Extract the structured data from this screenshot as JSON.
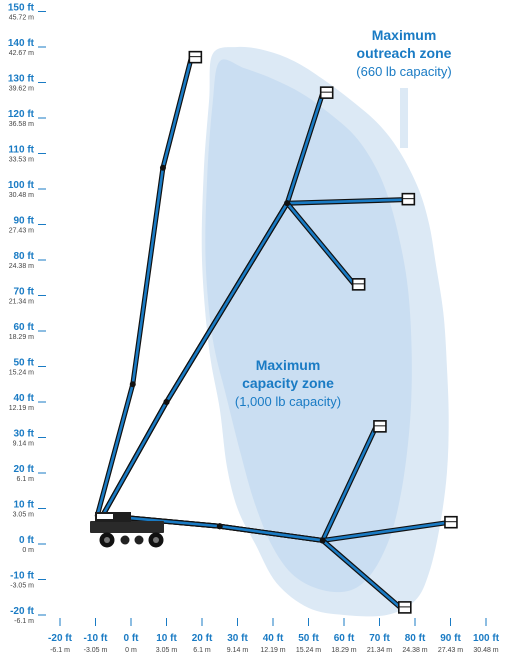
{
  "zones": {
    "outreach": {
      "title_line1": "Maximum",
      "title_line2": "outreach zone",
      "capacity": "(660 lb capacity)"
    },
    "capacity": {
      "title_line1": "Maximum",
      "title_line2": "capacity zone",
      "capacity": "(1,000 lb capacity)"
    }
  },
  "colors": {
    "outreach_zone": "#dce9f5",
    "capacity_zone": "#bcd6ee",
    "label_box": "#ffffff",
    "tick_ft": "#1a7bc4",
    "tick_m": "#444444",
    "boom": "#1a7bc4",
    "boom_outline": "#111111"
  },
  "chart_data": {
    "type": "diagram",
    "description_units": "ft",
    "x_axis": {
      "ticks": [
        {
          "ft": -20,
          "ft_label": "-20 ft",
          "m_label": "-6.1 m"
        },
        {
          "ft": -10,
          "ft_label": "-10 ft",
          "m_label": "-3.05 m"
        },
        {
          "ft": 0,
          "ft_label": "0 ft",
          "m_label": "0 m"
        },
        {
          "ft": 10,
          "ft_label": "10 ft",
          "m_label": "3.05 m"
        },
        {
          "ft": 20,
          "ft_label": "20 ft",
          "m_label": "6.1 m"
        },
        {
          "ft": 30,
          "ft_label": "30 ft",
          "m_label": "9.14 m"
        },
        {
          "ft": 40,
          "ft_label": "40 ft",
          "m_label": "12.19 m"
        },
        {
          "ft": 50,
          "ft_label": "50 ft",
          "m_label": "15.24 m"
        },
        {
          "ft": 60,
          "ft_label": "60 ft",
          "m_label": "18.29 m"
        },
        {
          "ft": 70,
          "ft_label": "70 ft",
          "m_label": "21.34 m"
        },
        {
          "ft": 80,
          "ft_label": "80 ft",
          "m_label": "24.38 m"
        },
        {
          "ft": 90,
          "ft_label": "90 ft",
          "m_label": "27.43 m"
        },
        {
          "ft": 100,
          "ft_label": "100 ft",
          "m_label": "30.48 m"
        }
      ]
    },
    "y_axis": {
      "ticks": [
        {
          "ft": 150,
          "ft_label": "150 ft",
          "m_label": "45.72 m"
        },
        {
          "ft": 140,
          "ft_label": "140 ft",
          "m_label": "42.67 m"
        },
        {
          "ft": 130,
          "ft_label": "130 ft",
          "m_label": "39.62 m"
        },
        {
          "ft": 120,
          "ft_label": "120 ft",
          "m_label": "36.58 m"
        },
        {
          "ft": 110,
          "ft_label": "110 ft",
          "m_label": "33.53 m"
        },
        {
          "ft": 100,
          "ft_label": "100 ft",
          "m_label": "30.48 m"
        },
        {
          "ft": 90,
          "ft_label": "90 ft",
          "m_label": "27.43 m"
        },
        {
          "ft": 80,
          "ft_label": "80 ft",
          "m_label": "24.38 m"
        },
        {
          "ft": 70,
          "ft_label": "70 ft",
          "m_label": "21.34 m"
        },
        {
          "ft": 60,
          "ft_label": "60 ft",
          "m_label": "18.29 m"
        },
        {
          "ft": 50,
          "ft_label": "50 ft",
          "m_label": "15.24 m"
        },
        {
          "ft": 40,
          "ft_label": "40 ft",
          "m_label": "12.19 m"
        },
        {
          "ft": 30,
          "ft_label": "30 ft",
          "m_label": "9.14 m"
        },
        {
          "ft": 20,
          "ft_label": "20 ft",
          "m_label": "6.1 m"
        },
        {
          "ft": 10,
          "ft_label": "10 ft",
          "m_label": "3.05 m"
        },
        {
          "ft": 0,
          "ft_label": "0 ft",
          "m_label": "0 m"
        },
        {
          "ft": -10,
          "ft_label": "-10 ft",
          "m_label": "-3.05 m"
        },
        {
          "ft": -20,
          "ft_label": "-20 ft",
          "m_label": "-6.1 m"
        }
      ]
    },
    "outreach_zone_outline": [
      [
        23,
        138
      ],
      [
        30,
        140
      ],
      [
        38,
        139
      ],
      [
        46,
        136
      ],
      [
        54,
        131
      ],
      [
        62,
        125
      ],
      [
        70,
        118
      ],
      [
        76,
        110
      ],
      [
        81,
        100
      ],
      [
        84,
        90
      ],
      [
        86,
        78
      ],
      [
        88,
        65
      ],
      [
        89,
        50
      ],
      [
        89.5,
        35
      ],
      [
        89,
        20
      ],
      [
        87,
        5
      ],
      [
        84,
        -8
      ],
      [
        80,
        -16
      ],
      [
        72,
        -20
      ],
      [
        60,
        -20
      ],
      [
        50,
        -18
      ],
      [
        41,
        -11
      ],
      [
        35,
        0
      ],
      [
        30,
        10
      ],
      [
        27,
        22
      ],
      [
        25,
        38
      ],
      [
        22,
        55
      ],
      [
        20,
        80
      ],
      [
        20.5,
        105
      ],
      [
        22,
        125
      ]
    ],
    "capacity_zone_outline": [
      [
        25,
        136
      ],
      [
        32,
        134
      ],
      [
        40,
        131
      ],
      [
        48,
        127
      ],
      [
        55,
        122
      ],
      [
        63,
        115
      ],
      [
        69,
        106
      ],
      [
        73,
        96
      ],
      [
        76,
        84
      ],
      [
        78,
        72
      ],
      [
        79,
        57
      ],
      [
        79,
        42
      ],
      [
        78,
        28
      ],
      [
        76,
        14
      ],
      [
        73,
        2
      ],
      [
        68,
        -8
      ],
      [
        62,
        -13
      ],
      [
        54,
        -13
      ],
      [
        46,
        -9
      ],
      [
        40,
        -1
      ],
      [
        35,
        11
      ],
      [
        31,
        25
      ],
      [
        27,
        41
      ],
      [
        23,
        58
      ],
      [
        21,
        80
      ],
      [
        21.5,
        104
      ],
      [
        23,
        124
      ]
    ],
    "boom_positions": [
      {
        "name": "vertical",
        "points": [
          [
            -9.5,
            8
          ],
          [
            0.5,
            45
          ],
          [
            9,
            106
          ],
          [
            17,
            137
          ]
        ]
      },
      {
        "name": "upper-articulated-up",
        "points": [
          [
            -8,
            8
          ],
          [
            10,
            40
          ],
          [
            44,
            96
          ],
          [
            54,
            127
          ]
        ]
      },
      {
        "name": "upper-articulated-level",
        "points": [
          [
            -8,
            8
          ],
          [
            10,
            40
          ],
          [
            44,
            96
          ],
          [
            77,
            97
          ]
        ]
      },
      {
        "name": "upper-articulated-down",
        "points": [
          [
            -8,
            8
          ],
          [
            10,
            40
          ],
          [
            44,
            96
          ],
          [
            63,
            73
          ]
        ]
      },
      {
        "name": "lower-articulated-up",
        "points": [
          [
            -8,
            8
          ],
          [
            25,
            5
          ],
          [
            54,
            1
          ],
          [
            69,
            33
          ]
        ]
      },
      {
        "name": "lower-articulated-level",
        "points": [
          [
            -8,
            8
          ],
          [
            25,
            5
          ],
          [
            54,
            1
          ],
          [
            89,
            6
          ]
        ]
      },
      {
        "name": "lower-articulated-down",
        "points": [
          [
            -8,
            8
          ],
          [
            25,
            5
          ],
          [
            54,
            1
          ],
          [
            76,
            -18
          ]
        ]
      }
    ]
  }
}
